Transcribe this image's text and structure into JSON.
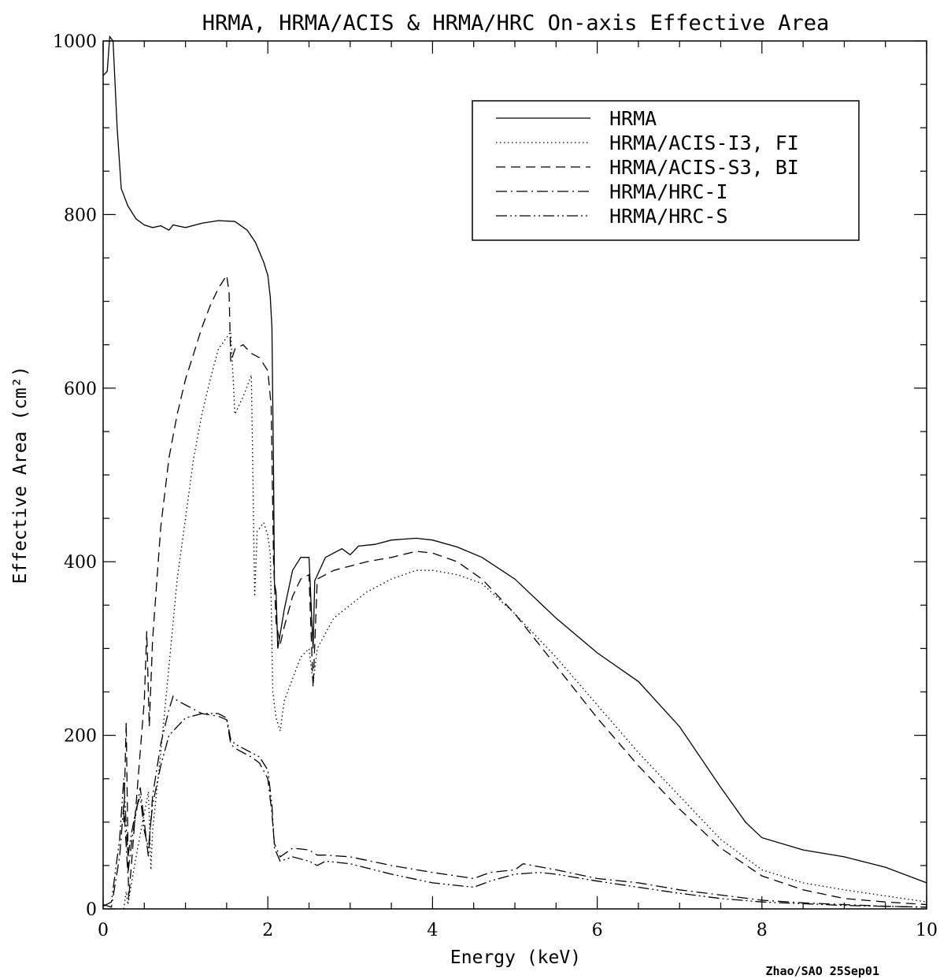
{
  "chart_data": {
    "type": "line",
    "title": "HRMA, HRMA/ACIS & HRMA/HRC On-axis Effective Area",
    "xlabel": "Energy (keV)",
    "ylabel": "Effective Area  (cm²)",
    "xlim": [
      0,
      10
    ],
    "ylim": [
      0,
      1000
    ],
    "x_ticks": [
      "0",
      "2",
      "4",
      "6",
      "8",
      "10"
    ],
    "y_ticks": [
      "0",
      "200",
      "400",
      "600",
      "800",
      "1000"
    ],
    "grid": false,
    "legend_position": "top-right",
    "credit": "Zhao/SAO 25Sep01",
    "series": [
      {
        "name": "HRMA",
        "dash": "solid",
        "points": [
          [
            0.0,
            960
          ],
          [
            0.05,
            965
          ],
          [
            0.08,
            1005
          ],
          [
            0.12,
            1000
          ],
          [
            0.17,
            900
          ],
          [
            0.22,
            830
          ],
          [
            0.3,
            810
          ],
          [
            0.4,
            795
          ],
          [
            0.5,
            788
          ],
          [
            0.6,
            785
          ],
          [
            0.7,
            787
          ],
          [
            0.8,
            782
          ],
          [
            0.85,
            788
          ],
          [
            1.0,
            785
          ],
          [
            1.2,
            790
          ],
          [
            1.4,
            793
          ],
          [
            1.6,
            792
          ],
          [
            1.75,
            782
          ],
          [
            1.85,
            768
          ],
          [
            1.95,
            745
          ],
          [
            2.0,
            730
          ],
          [
            2.03,
            705
          ],
          [
            2.05,
            670
          ],
          [
            2.07,
            500
          ],
          [
            2.08,
            375
          ],
          [
            2.1,
            365
          ],
          [
            2.12,
            300
          ],
          [
            2.2,
            345
          ],
          [
            2.3,
            390
          ],
          [
            2.4,
            405
          ],
          [
            2.5,
            405
          ],
          [
            2.55,
            300
          ],
          [
            2.57,
            378
          ],
          [
            2.7,
            405
          ],
          [
            2.9,
            415
          ],
          [
            3.0,
            408
          ],
          [
            3.1,
            418
          ],
          [
            3.3,
            420
          ],
          [
            3.5,
            425
          ],
          [
            3.8,
            427
          ],
          [
            4.0,
            425
          ],
          [
            4.3,
            417
          ],
          [
            4.6,
            405
          ],
          [
            5.0,
            380
          ],
          [
            5.5,
            335
          ],
          [
            6.0,
            295
          ],
          [
            6.5,
            262
          ],
          [
            7.0,
            210
          ],
          [
            7.5,
            140
          ],
          [
            7.8,
            100
          ],
          [
            8.0,
            82
          ],
          [
            8.5,
            68
          ],
          [
            9.0,
            60
          ],
          [
            9.5,
            48
          ],
          [
            10.0,
            30
          ]
        ]
      },
      {
        "name": "HRMA/ACIS-I3, FI",
        "dash": "dotted",
        "points": [
          [
            0.25,
            0
          ],
          [
            0.28,
            20
          ],
          [
            0.3,
            5
          ],
          [
            0.4,
            60
          ],
          [
            0.5,
            110
          ],
          [
            0.55,
            135
          ],
          [
            0.58,
            45
          ],
          [
            0.6,
            90
          ],
          [
            0.7,
            180
          ],
          [
            0.8,
            280
          ],
          [
            0.9,
            380
          ],
          [
            1.0,
            450
          ],
          [
            1.1,
            520
          ],
          [
            1.2,
            570
          ],
          [
            1.3,
            610
          ],
          [
            1.4,
            645
          ],
          [
            1.55,
            665
          ],
          [
            1.6,
            570
          ],
          [
            1.7,
            590
          ],
          [
            1.8,
            615
          ],
          [
            1.84,
            360
          ],
          [
            1.87,
            435
          ],
          [
            1.95,
            445
          ],
          [
            2.0,
            430
          ],
          [
            2.03,
            410
          ],
          [
            2.06,
            250
          ],
          [
            2.1,
            220
          ],
          [
            2.15,
            205
          ],
          [
            2.2,
            240
          ],
          [
            2.4,
            290
          ],
          [
            2.5,
            300
          ],
          [
            2.55,
            260
          ],
          [
            2.6,
            300
          ],
          [
            2.8,
            335
          ],
          [
            3.0,
            350
          ],
          [
            3.2,
            365
          ],
          [
            3.5,
            380
          ],
          [
            3.8,
            390
          ],
          [
            4.0,
            390
          ],
          [
            4.3,
            385
          ],
          [
            4.6,
            375
          ],
          [
            5.0,
            340
          ],
          [
            5.5,
            290
          ],
          [
            6.0,
            235
          ],
          [
            6.5,
            180
          ],
          [
            7.0,
            130
          ],
          [
            7.5,
            80
          ],
          [
            8.0,
            45
          ],
          [
            8.5,
            30
          ],
          [
            9.0,
            22
          ],
          [
            9.5,
            15
          ],
          [
            10.0,
            8
          ]
        ]
      },
      {
        "name": "HRMA/ACIS-S3, BI",
        "dash": "dashed",
        "points": [
          [
            0.25,
            100
          ],
          [
            0.28,
            215
          ],
          [
            0.31,
            10
          ],
          [
            0.4,
            120
          ],
          [
            0.5,
            240
          ],
          [
            0.53,
            320
          ],
          [
            0.56,
            210
          ],
          [
            0.6,
            310
          ],
          [
            0.7,
            440
          ],
          [
            0.8,
            520
          ],
          [
            0.9,
            570
          ],
          [
            1.0,
            610
          ],
          [
            1.1,
            640
          ],
          [
            1.2,
            670
          ],
          [
            1.3,
            695
          ],
          [
            1.4,
            715
          ],
          [
            1.5,
            730
          ],
          [
            1.53,
            710
          ],
          [
            1.55,
            630
          ],
          [
            1.6,
            645
          ],
          [
            1.7,
            650
          ],
          [
            1.8,
            640
          ],
          [
            1.9,
            635
          ],
          [
            2.0,
            620
          ],
          [
            2.04,
            580
          ],
          [
            2.07,
            400
          ],
          [
            2.1,
            330
          ],
          [
            2.15,
            305
          ],
          [
            2.2,
            325
          ],
          [
            2.3,
            360
          ],
          [
            2.4,
            380
          ],
          [
            2.5,
            385
          ],
          [
            2.55,
            255
          ],
          [
            2.6,
            380
          ],
          [
            2.8,
            390
          ],
          [
            3.0,
            395
          ],
          [
            3.2,
            400
          ],
          [
            3.5,
            405
          ],
          [
            3.8,
            412
          ],
          [
            4.0,
            410
          ],
          [
            4.3,
            400
          ],
          [
            4.6,
            380
          ],
          [
            5.0,
            340
          ],
          [
            5.5,
            280
          ],
          [
            6.0,
            220
          ],
          [
            6.5,
            165
          ],
          [
            7.0,
            115
          ],
          [
            7.5,
            70
          ],
          [
            8.0,
            38
          ],
          [
            8.5,
            22
          ],
          [
            9.0,
            12
          ],
          [
            9.5,
            8
          ],
          [
            10.0,
            5
          ]
        ]
      },
      {
        "name": "HRMA/HRC-I",
        "dash": "dashdot",
        "points": [
          [
            0.0,
            5
          ],
          [
            0.1,
            2
          ],
          [
            0.2,
            60
          ],
          [
            0.25,
            120
          ],
          [
            0.3,
            40
          ],
          [
            0.35,
            80
          ],
          [
            0.4,
            110
          ],
          [
            0.45,
            140
          ],
          [
            0.5,
            100
          ],
          [
            0.55,
            60
          ],
          [
            0.6,
            130
          ],
          [
            0.7,
            190
          ],
          [
            0.8,
            230
          ],
          [
            0.85,
            245
          ],
          [
            0.9,
            240
          ],
          [
            1.0,
            235
          ],
          [
            1.2,
            225
          ],
          [
            1.4,
            222
          ],
          [
            1.5,
            218
          ],
          [
            1.55,
            190
          ],
          [
            1.6,
            185
          ],
          [
            1.8,
            175
          ],
          [
            1.9,
            168
          ],
          [
            2.0,
            150
          ],
          [
            2.05,
            110
          ],
          [
            2.08,
            75
          ],
          [
            2.15,
            60
          ],
          [
            2.3,
            70
          ],
          [
            2.5,
            68
          ],
          [
            2.6,
            62
          ],
          [
            2.7,
            62
          ],
          [
            3.0,
            60
          ],
          [
            3.5,
            50
          ],
          [
            4.0,
            42
          ],
          [
            4.5,
            35
          ],
          [
            4.7,
            42
          ],
          [
            5.0,
            45
          ],
          [
            5.1,
            52
          ],
          [
            5.5,
            45
          ],
          [
            6.0,
            35
          ],
          [
            6.5,
            30
          ],
          [
            7.0,
            22
          ],
          [
            7.5,
            16
          ],
          [
            8.0,
            10
          ],
          [
            8.5,
            7
          ],
          [
            9.0,
            5
          ],
          [
            9.5,
            3
          ],
          [
            10.0,
            2
          ]
        ]
      },
      {
        "name": "HRMA/HRC-S",
        "dash": "dashdotdot",
        "points": [
          [
            0.0,
            3
          ],
          [
            0.1,
            8
          ],
          [
            0.2,
            80
          ],
          [
            0.25,
            150
          ],
          [
            0.3,
            60
          ],
          [
            0.35,
            90
          ],
          [
            0.4,
            115
          ],
          [
            0.45,
            130
          ],
          [
            0.5,
            90
          ],
          [
            0.55,
            70
          ],
          [
            0.6,
            120
          ],
          [
            0.7,
            165
          ],
          [
            0.8,
            200
          ],
          [
            0.9,
            210
          ],
          [
            1.0,
            220
          ],
          [
            1.2,
            225
          ],
          [
            1.4,
            225
          ],
          [
            1.5,
            220
          ],
          [
            1.55,
            195
          ],
          [
            1.6,
            190
          ],
          [
            1.8,
            180
          ],
          [
            1.9,
            175
          ],
          [
            2.0,
            160
          ],
          [
            2.05,
            120
          ],
          [
            2.08,
            70
          ],
          [
            2.15,
            55
          ],
          [
            2.3,
            60
          ],
          [
            2.5,
            55
          ],
          [
            2.6,
            50
          ],
          [
            2.7,
            55
          ],
          [
            3.0,
            52
          ],
          [
            3.5,
            40
          ],
          [
            4.0,
            30
          ],
          [
            4.5,
            25
          ],
          [
            4.7,
            32
          ],
          [
            5.0,
            40
          ],
          [
            5.3,
            42
          ],
          [
            5.5,
            40
          ],
          [
            6.0,
            32
          ],
          [
            6.5,
            25
          ],
          [
            7.0,
            18
          ],
          [
            7.5,
            12
          ],
          [
            8.0,
            8
          ],
          [
            8.5,
            6
          ],
          [
            9.0,
            4
          ],
          [
            9.5,
            3
          ],
          [
            10.0,
            2
          ]
        ]
      }
    ]
  }
}
